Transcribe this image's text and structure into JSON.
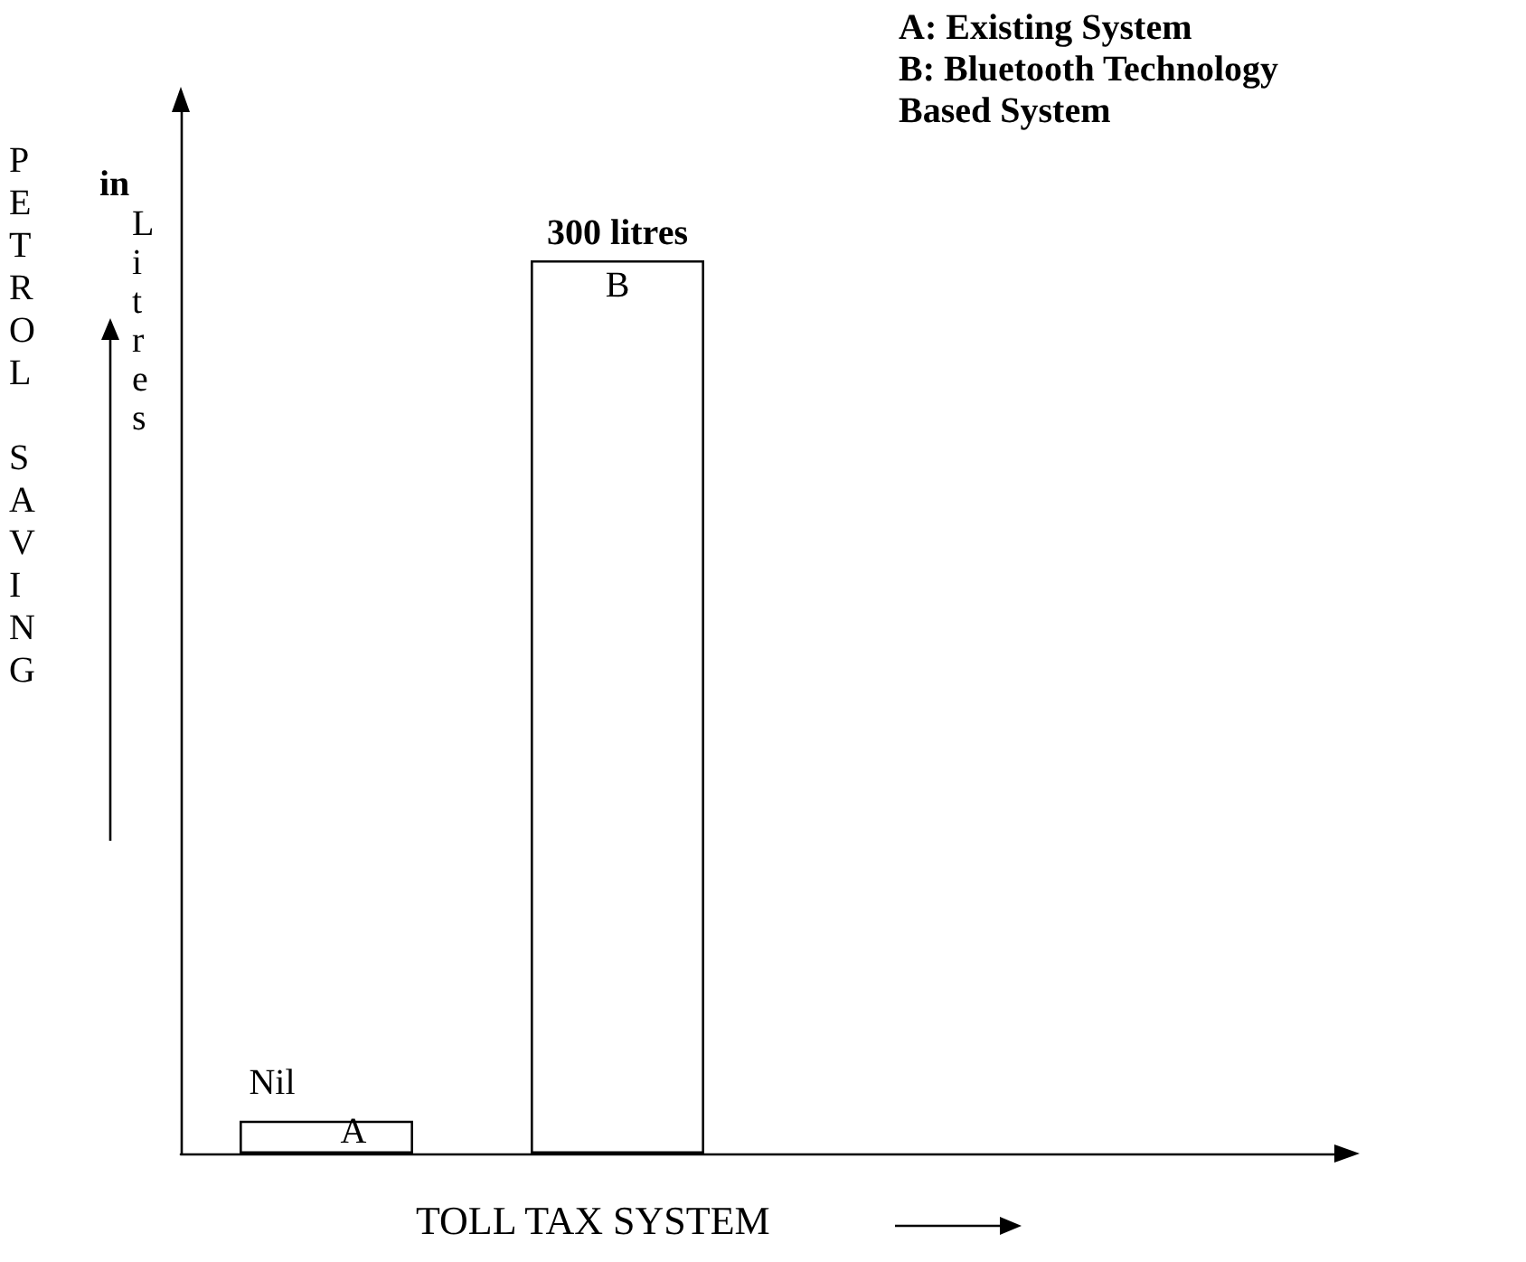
{
  "chart_data": {
    "type": "bar",
    "xlabel": "TOLL TAX SYSTEM",
    "ylabel": "PETROL SAVING",
    "categories": [
      "A",
      "B"
    ],
    "values": [
      11,
      300
    ],
    "value_labels": [
      "Nil",
      "300 litres"
    ],
    "color": "#ffffff",
    "annotations": [
      "A: Existing System",
      "B: Bluetooth Technology Based System",
      "in Litres"
    ]
  }
}
